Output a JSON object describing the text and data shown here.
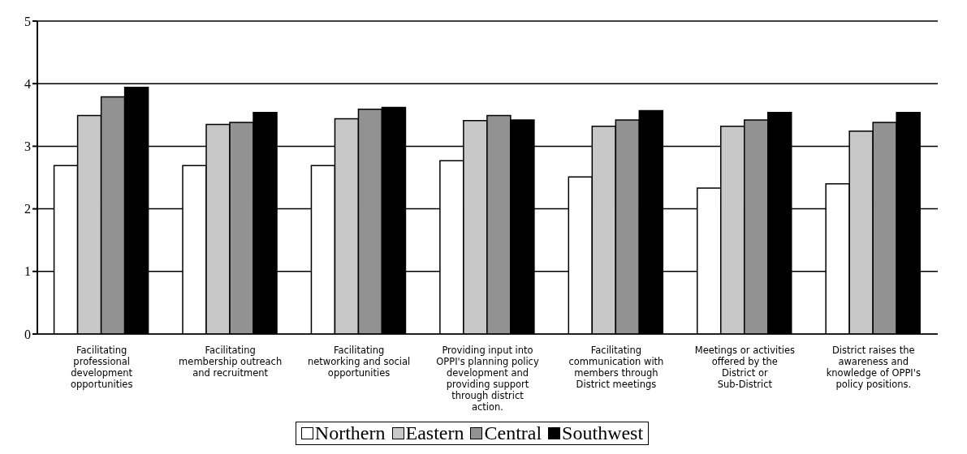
{
  "chart_data": {
    "type": "bar",
    "categories": [
      "Facilitating professional development opportunities",
      "Facilitating membership outreach and recruitment",
      "Facilitating networking and social opportunities",
      "Providing input into OPPI's planning policy development and providing support through district action.",
      "Facilitating communication with members through District meetings",
      "Meetings or activities offered by the District or Sub-District",
      "District raises the awareness and knowledge of OPPI's policy positions."
    ],
    "series": [
      {
        "name": "Northern",
        "color": "#ffffff",
        "values": [
          2.69,
          2.69,
          2.69,
          2.77,
          2.51,
          2.33,
          2.4
        ]
      },
      {
        "name": "Eastern",
        "color": "#c8c8c8",
        "values": [
          3.49,
          3.35,
          3.44,
          3.41,
          3.32,
          3.32,
          3.24
        ]
      },
      {
        "name": "Central",
        "color": "#929292",
        "values": [
          3.79,
          3.38,
          3.59,
          3.49,
          3.42,
          3.42,
          3.38
        ]
      },
      {
        "name": "Southwest",
        "color": "#000000",
        "values": [
          3.94,
          3.54,
          3.62,
          3.42,
          3.57,
          3.54,
          3.54
        ]
      }
    ],
    "ylim": [
      0,
      5
    ],
    "yticks": [
      0,
      1,
      2,
      3,
      4,
      5
    ],
    "grid": "y",
    "legend": "bottom"
  }
}
